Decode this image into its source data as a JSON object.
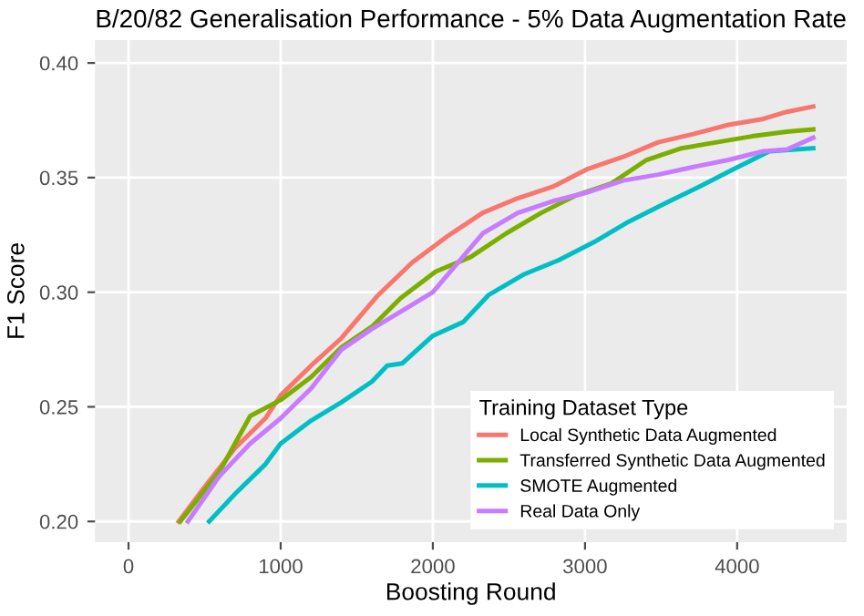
{
  "chart_data": {
    "type": "line",
    "title": "B/20/82 Generalisation Performance - 5% Data Augmentation Rate",
    "xlabel": "Boosting Round",
    "ylabel": "F1 Score",
    "legend_title": "Training Dataset Type",
    "series": [
      {
        "name": "Local Synthetic Data Augmented",
        "color": "#f8766d",
        "x": [
          330,
          500,
          700,
          900,
          1000,
          1200,
          1400,
          1640,
          1865,
          2096,
          2327,
          2558,
          2788,
          3019,
          3250,
          3481,
          3712,
          3942,
          4173,
          4327,
          4500
        ],
        "values": [
          0.2,
          0.215,
          0.232,
          0.245,
          0.255,
          0.268,
          0.28,
          0.2987,
          0.313,
          0.3244,
          0.3346,
          0.341,
          0.346,
          0.3538,
          0.359,
          0.3654,
          0.369,
          0.373,
          0.3756,
          0.3787,
          0.381
        ]
      },
      {
        "name": "Transferred Synthetic Data Augmented",
        "color": "#7cae00",
        "x": [
          340,
          600,
          800,
          1000,
          1200,
          1400,
          1600,
          1788,
          2019,
          2250,
          2481,
          2712,
          2942,
          3173,
          3404,
          3635,
          3865,
          4096,
          4327,
          4500
        ],
        "values": [
          0.2,
          0.222,
          0.246,
          0.253,
          0.263,
          0.276,
          0.285,
          0.2974,
          0.309,
          0.3154,
          0.3256,
          0.3346,
          0.3423,
          0.3474,
          0.3577,
          0.3628,
          0.3654,
          0.368,
          0.37,
          0.371
        ]
      },
      {
        "name": "SMOTE Augmented",
        "color": "#00bfc4",
        "x": [
          530,
          700,
          900,
          1000,
          1200,
          1400,
          1600,
          1700,
          1800,
          2000,
          2200,
          2365,
          2596,
          2827,
          3058,
          3288,
          3519,
          3750,
          3981,
          4212,
          4500
        ],
        "values": [
          0.2,
          0.212,
          0.225,
          0.234,
          0.244,
          0.252,
          0.261,
          0.268,
          0.269,
          0.281,
          0.287,
          0.2987,
          0.3077,
          0.314,
          0.3218,
          0.3308,
          0.3385,
          0.346,
          0.3538,
          0.3615,
          0.3628
        ]
      },
      {
        "name": "Real Data Only",
        "color": "#c77cff",
        "x": [
          390,
          600,
          800,
          1000,
          1200,
          1400,
          1600,
          1800,
          2000,
          2327,
          2558,
          2788,
          3019,
          3250,
          3481,
          3712,
          3942,
          4173,
          4327,
          4500
        ],
        "values": [
          0.2,
          0.22,
          0.234,
          0.245,
          0.258,
          0.275,
          0.284,
          0.292,
          0.3,
          0.3256,
          0.3346,
          0.3397,
          0.3436,
          0.3487,
          0.3513,
          0.3546,
          0.3577,
          0.3615,
          0.3623,
          0.3674
        ]
      }
    ],
    "xlim": [
      -220,
      4720
    ],
    "xticks": [
      0,
      1000,
      2000,
      3000,
      4000
    ],
    "ylim": [
      0.191,
      0.41
    ],
    "yticks": [
      {
        "value": 0.2,
        "label": "0.20"
      },
      {
        "value": 0.25,
        "label": "0.25"
      },
      {
        "value": 0.3,
        "label": "0.30"
      },
      {
        "value": 0.35,
        "label": "0.35"
      },
      {
        "value": 0.4,
        "label": "0.40"
      }
    ],
    "grid": true,
    "legend": "bottom right",
    "marker": "none",
    "line_style": "solid"
  }
}
